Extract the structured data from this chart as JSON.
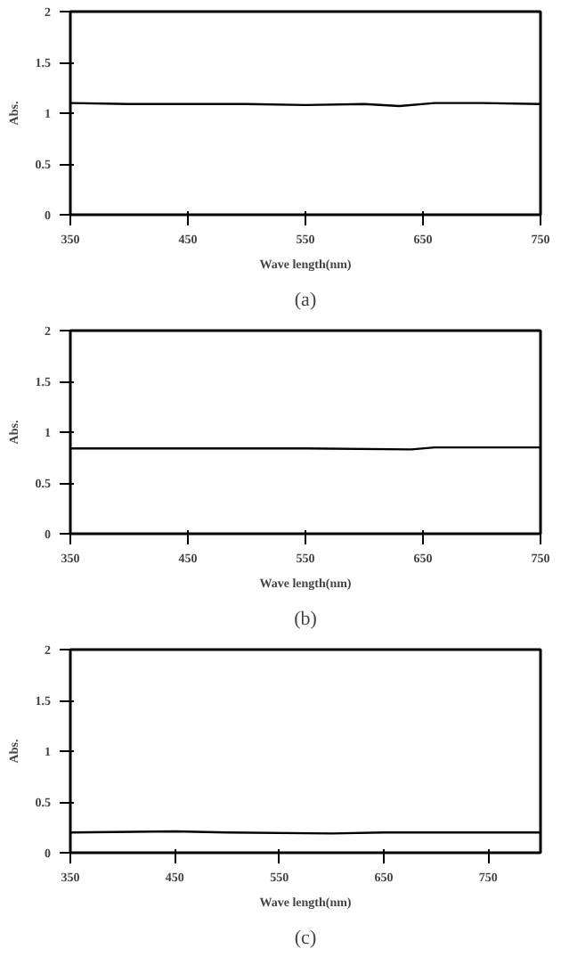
{
  "chart_data": [
    {
      "type": "line",
      "title": "(a)",
      "xlabel": "Wave length(nm)",
      "ylabel": "Abs.",
      "x": [
        350,
        400,
        450,
        500,
        550,
        600,
        630,
        660,
        700,
        750
      ],
      "series": [
        {
          "color": "#000000",
          "values": [
            1.1,
            1.09,
            1.09,
            1.09,
            1.08,
            1.09,
            1.07,
            1.1,
            1.1,
            1.09
          ]
        }
      ],
      "xlim": [
        350,
        750
      ],
      "xticks": [
        350,
        450,
        550,
        650,
        750
      ],
      "ylim": [
        0,
        2
      ],
      "yticks": [
        0,
        0.5,
        1,
        1.5,
        2
      ],
      "grid": false
    },
    {
      "type": "line",
      "title": "(b)",
      "xlabel": "Wave length(nm)",
      "ylabel": "Abs.",
      "x": [
        350,
        450,
        550,
        640,
        660,
        750
      ],
      "series": [
        {
          "color": "#000000",
          "values": [
            0.84,
            0.84,
            0.84,
            0.83,
            0.85,
            0.85
          ]
        }
      ],
      "xlim": [
        350,
        750
      ],
      "xticks": [
        350,
        450,
        550,
        650,
        750
      ],
      "ylim": [
        0,
        2
      ],
      "yticks": [
        0,
        0.5,
        1,
        1.5,
        2
      ],
      "grid": false
    },
    {
      "type": "line",
      "title": "(c)",
      "xlabel": "Wave length(nm)",
      "ylabel": "Abs.",
      "x": [
        350,
        450,
        500,
        600,
        650,
        700,
        800
      ],
      "series": [
        {
          "color": "#000000",
          "values": [
            0.2,
            0.21,
            0.2,
            0.19,
            0.2,
            0.2,
            0.2
          ]
        }
      ],
      "xlim": [
        350,
        800
      ],
      "xticks": [
        350,
        450,
        550,
        650,
        750
      ],
      "ylim": [
        0,
        2
      ],
      "yticks": [
        0,
        0.5,
        1,
        1.5,
        2
      ],
      "grid": false
    }
  ]
}
